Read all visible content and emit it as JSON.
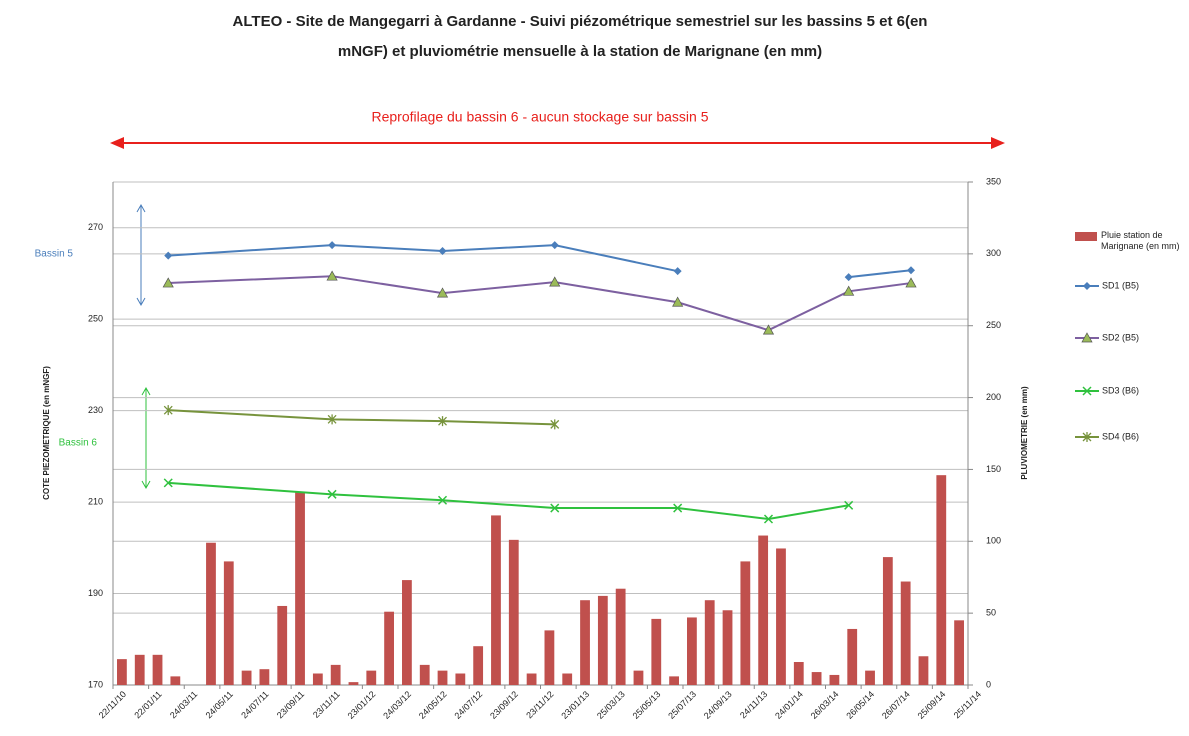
{
  "chart_data": {
    "type": "combo",
    "title": [
      "ALTEO - Site de Mangegarri à Gardanne  - Suivi piézométrique semestriel  sur les bassins 5 et 6(en",
      "mNGF) et pluviométrie mensuelle à la station de Marignane (en mm)"
    ],
    "y_label": "COTE PIEZOMETRIQUE (en mNGF)",
    "y2_label": "PLUVIOMETRIE (en mm)",
    "annotations": [
      "Reprofilage  du bassin 6 - aucun stockage sur bassin 5",
      "Bassin 5",
      "Bassin 6"
    ],
    "xlim": [
      0,
      48
    ],
    "xticks": [
      {
        "value": 0,
        "label": "22/11/10"
      },
      {
        "value": 2,
        "label": "22/01/11"
      },
      {
        "value": 4,
        "label": "24/03/11"
      },
      {
        "value": 6,
        "label": "24/05/11"
      },
      {
        "value": 8,
        "label": "24/07/11"
      },
      {
        "value": 10,
        "label": "23/09/11"
      },
      {
        "value": 12,
        "label": "23/11/11"
      },
      {
        "value": 14,
        "label": "23/01/12"
      },
      {
        "value": 16,
        "label": "24/03/12"
      },
      {
        "value": 18,
        "label": "24/05/12"
      },
      {
        "value": 20,
        "label": "24/07/12"
      },
      {
        "value": 22,
        "label": "23/09/12"
      },
      {
        "value": 24,
        "label": "23/11/12"
      },
      {
        "value": 26,
        "label": "23/01/13"
      },
      {
        "value": 28,
        "label": "25/03/13"
      },
      {
        "value": 30,
        "label": "25/05/13"
      },
      {
        "value": 32,
        "label": "25/07/13"
      },
      {
        "value": 34,
        "label": "24/09/13"
      },
      {
        "value": 36,
        "label": "24/11/13"
      },
      {
        "value": 38,
        "label": "24/01/14"
      },
      {
        "value": 40,
        "label": "26/03/14"
      },
      {
        "value": 42,
        "label": "26/05/14"
      },
      {
        "value": 44,
        "label": "26/07/14"
      },
      {
        "value": 46,
        "label": "25/09/14"
      },
      {
        "value": 48,
        "label": "25/11/14"
      }
    ],
    "ylim": [
      170,
      280
    ],
    "yticks": [
      170,
      190,
      210,
      230,
      250,
      270
    ],
    "y2lim": [
      0,
      350
    ],
    "y2ticks": [
      0,
      50,
      100,
      150,
      200,
      250,
      300,
      350
    ],
    "grid": true,
    "legend": "right",
    "bars": {
      "name": "Pluie station de Marignane (en mm)",
      "color": "#c0504d",
      "axis": "y2",
      "x": [
        0.5,
        1.5,
        2.5,
        3.5,
        4.5,
        5.5,
        6.5,
        7.5,
        8.5,
        9.5,
        10.5,
        11.5,
        12.5,
        13.5,
        14.5,
        15.5,
        16.5,
        17.5,
        18.5,
        19.5,
        20.5,
        21.5,
        22.5,
        23.5,
        24.5,
        25.5,
        26.5,
        27.5,
        28.5,
        29.5,
        30.5,
        31.5,
        32.5,
        33.5,
        34.5,
        35.5,
        36.5,
        37.5,
        38.5,
        39.5,
        40.5,
        41.5,
        42.5,
        43.5,
        44.5,
        45.5,
        46.5,
        47.5
      ],
      "values": [
        18,
        21,
        21,
        6,
        0,
        99,
        86,
        10,
        11,
        55,
        134,
        8,
        14,
        2,
        10,
        51,
        73,
        14,
        10,
        8,
        27,
        118,
        101,
        8,
        38,
        8,
        59,
        62,
        67,
        10,
        46,
        6,
        47,
        59,
        52,
        86,
        104,
        95,
        16,
        9,
        7,
        39,
        10,
        89,
        72,
        20,
        146,
        45
      ]
    },
    "x": [
      3.1,
      12.3,
      18.5,
      24.8,
      31.7,
      36.8,
      41.3,
      44.8
    ],
    "series": [
      {
        "name": "SD1 (B5)",
        "color": "#4a7ebb",
        "marker": "diamond",
        "values": [
          263.9,
          266.2,
          264.9,
          266.2,
          260.5,
          null,
          259.2,
          260.7
        ]
      },
      {
        "name": "SD2 (B5)",
        "color": "#7d60a0",
        "marker": "triangle",
        "values": [
          257.9,
          259.4,
          255.7,
          258.1,
          253.7,
          247.6,
          256.1,
          257.9
        ]
      },
      {
        "name": "SD3 (B6)",
        "color": "#2fc13e",
        "marker": "x",
        "values": [
          214.2,
          211.7,
          210.4,
          208.7,
          208.7,
          206.3,
          209.3,
          null
        ]
      },
      {
        "name": "SD4 (B6)",
        "color": "#77933c",
        "marker": "star",
        "values": [
          230.1,
          228.1,
          227.7,
          227.0,
          null,
          null,
          null,
          null
        ]
      }
    ]
  }
}
